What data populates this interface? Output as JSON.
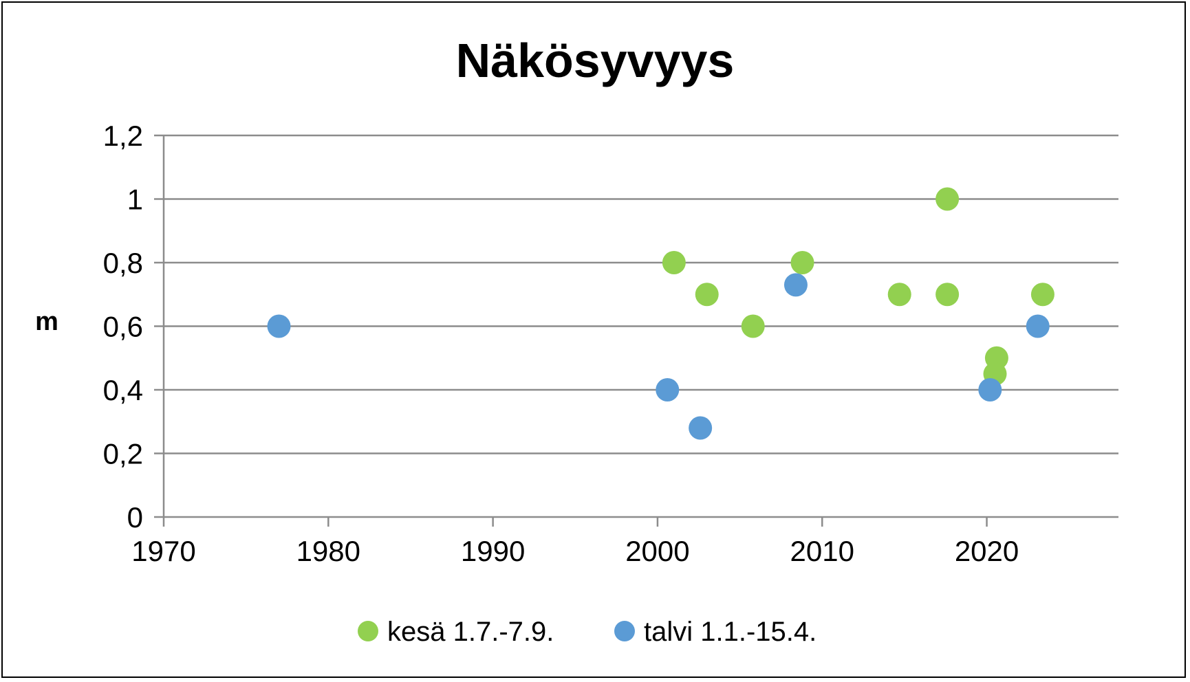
{
  "chart_data": {
    "type": "scatter",
    "title": "Näkösyvyys",
    "xlabel": "",
    "ylabel": "m",
    "xlim": [
      1970,
      2028
    ],
    "ylim": [
      0,
      1.2
    ],
    "x_ticks": [
      1970,
      1980,
      1990,
      2000,
      2010,
      2020
    ],
    "x_tick_labels": [
      "1970",
      "1980",
      "1990",
      "2000",
      "2010",
      "2020"
    ],
    "y_ticks": [
      0,
      0.2,
      0.4,
      0.6,
      0.8,
      1.0,
      1.2
    ],
    "y_tick_labels": [
      "0",
      "0,2",
      "0,4",
      "0,6",
      "0,8",
      "1",
      "1,2"
    ],
    "grid": "horizontal",
    "legend_position": "bottom",
    "series": [
      {
        "name": "kesä 1.7.-7.9.",
        "color": "#92d050",
        "points": [
          {
            "x": 2001.0,
            "y": 0.8
          },
          {
            "x": 2003.0,
            "y": 0.7
          },
          {
            "x": 2005.8,
            "y": 0.6
          },
          {
            "x": 2008.8,
            "y": 0.8
          },
          {
            "x": 2014.7,
            "y": 0.7
          },
          {
            "x": 2017.6,
            "y": 1.0
          },
          {
            "x": 2017.6,
            "y": 0.7
          },
          {
            "x": 2020.6,
            "y": 0.5
          },
          {
            "x": 2020.5,
            "y": 0.45
          },
          {
            "x": 2023.4,
            "y": 0.7
          }
        ]
      },
      {
        "name": "talvi 1.1.-15.4.",
        "color": "#5b9bd5",
        "points": [
          {
            "x": 1977.0,
            "y": 0.6
          },
          {
            "x": 2000.6,
            "y": 0.4
          },
          {
            "x": 2002.6,
            "y": 0.28
          },
          {
            "x": 2008.4,
            "y": 0.73
          },
          {
            "x": 2020.2,
            "y": 0.4
          },
          {
            "x": 2023.1,
            "y": 0.6
          }
        ]
      }
    ]
  }
}
